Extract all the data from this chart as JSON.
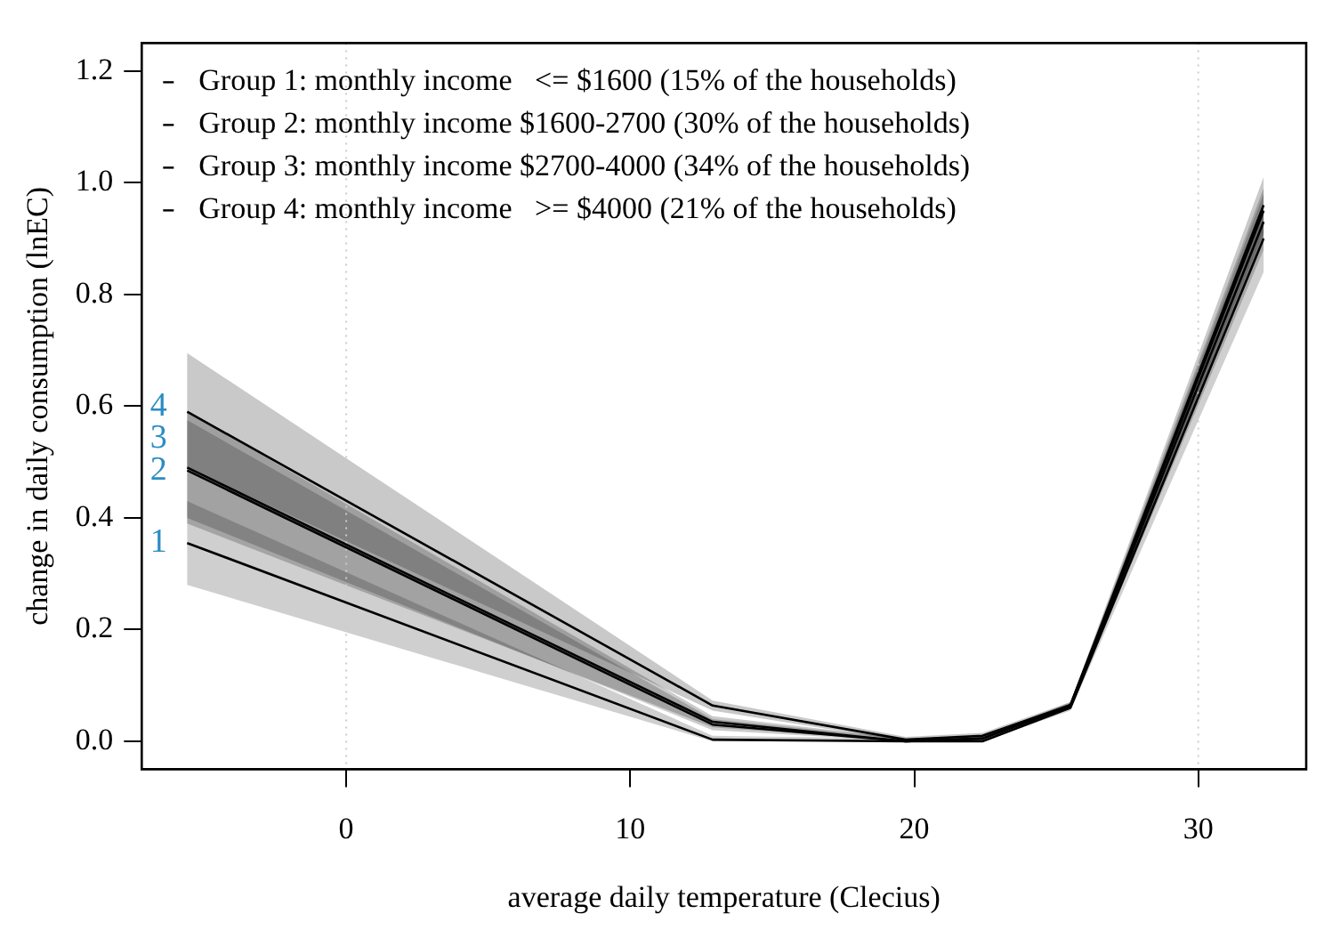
{
  "chart_data": {
    "type": "line",
    "xlabel": "average daily temperature (Clecius)",
    "ylabel": "change in daily consumption (lnEC)",
    "x": [
      -5.6,
      12.9,
      19.7,
      22.4,
      25.5,
      32.3
    ],
    "series": [
      {
        "name": "Group 1: monthly income   <= $1600 (15% of the households)",
        "color": "#000000",
        "values": [
          0.355,
          0.003,
          0.0,
          0.0,
          0.06,
          0.9
        ],
        "lower": [
          0.28,
          0.0,
          0.0,
          0.0,
          0.055,
          0.84
        ],
        "upper": [
          0.43,
          0.01,
          0.005,
          0.005,
          0.065,
          0.96
        ]
      },
      {
        "name": "Group 2: monthly income $1600-2700 (30% of the households)",
        "color": "#000000",
        "values": [
          0.485,
          0.03,
          0.0,
          0.005,
          0.063,
          0.93
        ],
        "lower": [
          0.4,
          0.02,
          0.0,
          0.0,
          0.058,
          0.88
        ],
        "upper": [
          0.575,
          0.04,
          0.005,
          0.01,
          0.068,
          0.98
        ]
      },
      {
        "name": "Group 3: monthly income $2700-4000 (34% of the households)",
        "color": "#000000",
        "values": [
          0.49,
          0.035,
          0.0,
          0.005,
          0.065,
          0.95
        ],
        "lower": [
          0.39,
          0.025,
          0.0,
          0.0,
          0.06,
          0.9
        ],
        "upper": [
          0.59,
          0.045,
          0.005,
          0.01,
          0.07,
          0.99
        ]
      },
      {
        "name": "Group 4: monthly income   >= $4000 (21% of the households)",
        "color": "#000000",
        "values": [
          0.59,
          0.064,
          0.003,
          0.01,
          0.065,
          0.96
        ],
        "lower": [
          0.49,
          0.055,
          0.0,
          0.005,
          0.06,
          0.91
        ],
        "upper": [
          0.695,
          0.073,
          0.008,
          0.015,
          0.07,
          1.01
        ]
      }
    ],
    "xlim": [
      -7.2,
      33.8
    ],
    "xticks": [
      0,
      10,
      20,
      30
    ],
    "ylim": [
      -0.05,
      1.25
    ],
    "yticks": [
      {
        "value": 0,
        "label": "0.0"
      },
      {
        "value": 0.2,
        "label": "0.2"
      },
      {
        "value": 0.4,
        "label": "0.4"
      },
      {
        "value": 0.6,
        "label": "0.6"
      },
      {
        "value": 0.8,
        "label": "0.8"
      },
      {
        "value": 1,
        "label": "1.0"
      },
      {
        "value": 1.2,
        "label": "1.2"
      }
    ],
    "ref_lines": [
      {
        "axis": "x",
        "value": 0,
        "color": "#cccccc",
        "line_style": "dotted"
      },
      {
        "axis": "x",
        "value": 30,
        "color": "#cccccc",
        "line_style": "dotted"
      }
    ],
    "annotations": [
      "1",
      "2",
      "3",
      "4"
    ],
    "legend": "top left",
    "marker": "none",
    "line_style": "solid",
    "grid": false
  }
}
